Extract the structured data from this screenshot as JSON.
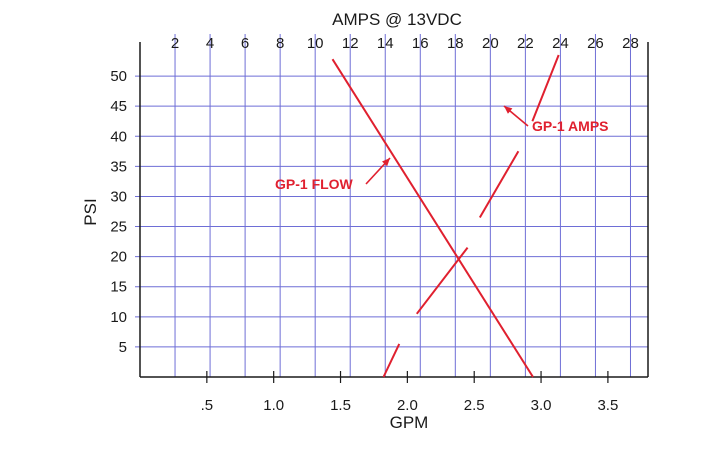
{
  "chart_data": {
    "type": "line",
    "top_axis": {
      "label": "AMPS @ 13VDC",
      "ticks": [
        "2",
        "4",
        "6",
        "8",
        "10",
        "12",
        "14",
        "16",
        "18",
        "20",
        "22",
        "24",
        "26",
        "28"
      ],
      "range": [
        0,
        29
      ]
    },
    "bottom_axis": {
      "label": "GPM",
      "ticks": [
        ".5",
        "1.0",
        "1.5",
        "2.0",
        "2.5",
        "3.0",
        "3.5"
      ],
      "tick_values": [
        0.5,
        1.0,
        1.5,
        2.0,
        2.5,
        3.0,
        3.5
      ],
      "range": [
        0,
        3.8
      ]
    },
    "left_axis": {
      "label": "PSI",
      "ticks": [
        "5",
        "10",
        "15",
        "20",
        "25",
        "30",
        "35",
        "40",
        "45",
        "50"
      ],
      "tick_values": [
        5,
        10,
        15,
        20,
        25,
        30,
        35,
        40,
        45,
        50
      ],
      "range": [
        0,
        54
      ]
    },
    "grid": true,
    "colors": {
      "grid": "#6e6ed6",
      "series": "#e0202f",
      "axis": "#1a1a1a"
    },
    "series": [
      {
        "name": "GP-1 FLOW",
        "x_axis": "GPM",
        "points": [
          [
            1.44,
            52.8
          ],
          [
            2.94,
            0
          ]
        ]
      },
      {
        "name": "GP-1 AMPS",
        "x_axis": "AMPS @ 13VDC",
        "segments": [
          [
            [
              13.9,
              0
            ],
            [
              14.8,
              5.5
            ]
          ],
          [
            [
              15.8,
              10.5
            ],
            [
              18.7,
              21.5
            ]
          ],
          [
            [
              19.4,
              26.5
            ],
            [
              21.6,
              37.5
            ]
          ],
          [
            [
              22.4,
              42.5
            ],
            [
              23.9,
              53.5
            ]
          ]
        ]
      }
    ],
    "annotations": [
      {
        "text": "GP-1 FLOW",
        "series": "GP-1 FLOW"
      },
      {
        "text": "GP-1 AMPS",
        "series": "GP-1 AMPS"
      }
    ]
  }
}
